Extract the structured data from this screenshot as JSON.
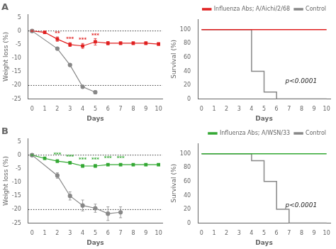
{
  "chart_data": [
    {
      "type": "line",
      "title": "A",
      "x_label": "Days",
      "y_label": "Weight loss (%)",
      "xlim": [
        -0.3,
        10.3
      ],
      "xticks": [
        0,
        1,
        2,
        3,
        4,
        5,
        6,
        7,
        8,
        9,
        10
      ],
      "ylim": [
        -25,
        6
      ],
      "yticks": [
        -25,
        -20,
        -15,
        -10,
        -5,
        0,
        5
      ],
      "grid": false,
      "hlines": [
        0,
        -20
      ],
      "series": [
        {
          "color": "#888888",
          "marker": "circle",
          "x": [
            0,
            2,
            3,
            4,
            5
          ],
          "values": [
            0,
            -6.5,
            -12.5,
            -20.5,
            -22.5
          ],
          "errors": [
            0.2,
            0.3,
            0.5,
            0.4,
            0.6
          ]
        },
        {
          "color": "#e02020",
          "marker": "square",
          "x": [
            0,
            1,
            2,
            3,
            4,
            5,
            6,
            7,
            8,
            9,
            10
          ],
          "values": [
            0,
            -0.5,
            -3.0,
            -5.0,
            -5.5,
            -4.0,
            -4.5,
            -4.5,
            -4.5,
            -4.5,
            -4.8
          ],
          "errors": [
            0.2,
            0.4,
            0.8,
            0.7,
            0.9,
            1.2,
            0.6,
            0.5,
            0.5,
            0.5,
            0.5
          ]
        }
      ],
      "annotations": [
        {
          "text": "**",
          "x": 2,
          "y": -1.8,
          "color": "#e02020"
        },
        {
          "text": "***",
          "x": 3,
          "y": -3.8,
          "color": "#e02020"
        },
        {
          "text": "***",
          "x": 4,
          "y": -4.2,
          "color": "#e02020"
        },
        {
          "text": "***",
          "x": 5,
          "y": -2.5,
          "color": "#e02020"
        }
      ]
    },
    {
      "type": "step",
      "x_label": "Days",
      "y_label": "Survival (%)",
      "xlim": [
        -0.3,
        10.3
      ],
      "xticks": [
        0,
        1,
        2,
        3,
        4,
        5,
        6,
        7,
        8,
        9,
        10
      ],
      "ylim": [
        0,
        115
      ],
      "yticks": [
        0,
        20,
        40,
        60,
        80,
        100
      ],
      "grid": false,
      "legend": "upper right",
      "series": [
        {
          "name": "Influenza Abs; A/Aichi/2/68",
          "color": "#e02020",
          "x": [
            0,
            10
          ],
          "values": [
            100,
            100
          ]
        },
        {
          "name": "Control",
          "color": "#888888",
          "x": [
            0,
            4,
            4,
            5,
            5,
            6,
            6,
            10
          ],
          "values": [
            100,
            100,
            40,
            40,
            10,
            10,
            0,
            0
          ]
        }
      ],
      "annotations": [
        {
          "text": "p<0.0001"
        }
      ]
    },
    {
      "type": "line",
      "title": "B",
      "x_label": "Days",
      "y_label": "Weight loss (%)",
      "xlim": [
        -0.3,
        10.3
      ],
      "xticks": [
        0,
        1,
        2,
        3,
        4,
        5,
        6,
        7,
        8,
        9,
        10
      ],
      "ylim": [
        -25,
        6
      ],
      "yticks": [
        -25,
        -20,
        -15,
        -10,
        -5,
        0,
        5
      ],
      "grid": false,
      "hlines": [
        0,
        -20
      ],
      "series": [
        {
          "color": "#888888",
          "marker": "circle",
          "x": [
            0,
            2,
            3,
            4,
            5,
            6,
            7
          ],
          "values": [
            0,
            -7.5,
            -15.0,
            -18.5,
            -19.5,
            -21.5,
            -21.0
          ],
          "errors": [
            0.2,
            1.0,
            1.5,
            2.0,
            1.5,
            2.5,
            2.0
          ]
        },
        {
          "color": "#33a833",
          "marker": "square",
          "x": [
            0,
            1,
            2,
            3,
            4,
            5,
            6,
            7,
            8,
            9,
            10
          ],
          "values": [
            0,
            -1.2,
            -2.2,
            -2.8,
            -4.0,
            -4.0,
            -3.5,
            -3.5,
            -3.5,
            -3.5,
            -3.5
          ],
          "errors": [
            0.2,
            0.4,
            0.5,
            0.5,
            0.5,
            0.5,
            0.4,
            0.4,
            0.4,
            0.4,
            0.4
          ]
        }
      ],
      "annotations": [
        {
          "text": "***",
          "x": 2,
          "y": -0.8,
          "color": "#33a833"
        },
        {
          "text": "***",
          "x": 3,
          "y": -1.5,
          "color": "#33a833"
        },
        {
          "text": "***",
          "x": 4,
          "y": -2.5,
          "color": "#33a833"
        },
        {
          "text": "***",
          "x": 5,
          "y": -2.5,
          "color": "#33a833"
        },
        {
          "text": "***",
          "x": 6,
          "y": -2.0,
          "color": "#33a833"
        },
        {
          "text": "***",
          "x": 7,
          "y": -2.0,
          "color": "#33a833"
        }
      ]
    },
    {
      "type": "step",
      "x_label": "Days",
      "y_label": "Survival (%)",
      "xlim": [
        -0.3,
        10.3
      ],
      "xticks": [
        0,
        1,
        2,
        3,
        4,
        5,
        6,
        7,
        8,
        9,
        10
      ],
      "ylim": [
        0,
        115
      ],
      "yticks": [
        0,
        20,
        40,
        60,
        80,
        100
      ],
      "grid": false,
      "legend": "upper right",
      "series": [
        {
          "name": "Influenza Abs; A/WSN/33",
          "color": "#33a833",
          "x": [
            0,
            10
          ],
          "values": [
            100,
            100
          ]
        },
        {
          "name": "Control",
          "color": "#888888",
          "x": [
            0,
            4,
            4,
            5,
            5,
            6,
            6,
            7,
            7,
            10
          ],
          "values": [
            100,
            100,
            90,
            90,
            60,
            60,
            20,
            20,
            0,
            0
          ]
        }
      ],
      "annotations": [
        {
          "text": "p<0.0001"
        }
      ]
    }
  ]
}
